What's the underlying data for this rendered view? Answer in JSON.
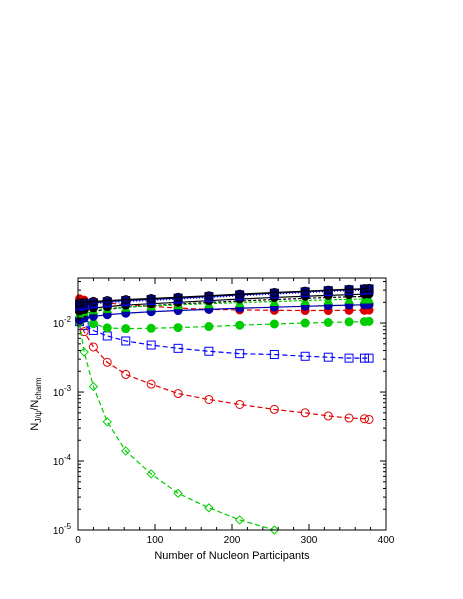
{
  "chart_data": {
    "type": "scatter",
    "title": "",
    "xlabel": "Number of Nucleon Participants",
    "ylabel_main": "N",
    "ylabel_sub1": "J/ψ",
    "ylabel_mid": "/N",
    "ylabel_sub2": "charm",
    "xlim": [
      0,
      400
    ],
    "ylog": true,
    "ylim": [
      1e-05,
      0.045
    ],
    "x_ticks": [
      0,
      100,
      200,
      300,
      400
    ],
    "x_tick_labels": [
      "0",
      "100",
      "200",
      "300",
      "400"
    ],
    "y_ticks": [
      1e-05,
      0.0001,
      0.001,
      0.01
    ],
    "y_tick_labels": [
      {
        "base": "10",
        "exp": "-5"
      },
      {
        "base": "10",
        "exp": "-4"
      },
      {
        "base": "10",
        "exp": "-3"
      },
      {
        "base": "10",
        "exp": "-2"
      }
    ],
    "x": [
      2,
      8,
      20,
      38,
      62,
      95,
      130,
      170,
      210,
      255,
      295,
      325,
      352,
      372,
      378
    ],
    "series": [
      {
        "color": "#0000ff",
        "marker": "open-square",
        "dash": "5,3",
        "values": [
          0.0105,
          0.0092,
          0.0078,
          0.0065,
          0.0055,
          0.0048,
          0.0043,
          0.0039,
          0.0036,
          0.0035,
          0.0033,
          0.0032,
          0.0031,
          0.0031,
          0.0031
        ]
      },
      {
        "color": "#e00000",
        "marker": "open-circle",
        "dash": "5,3",
        "values": [
          0.0105,
          0.0075,
          0.0045,
          0.0027,
          0.0018,
          0.0013,
          0.00095,
          0.00078,
          0.00066,
          0.00056,
          0.0005,
          0.00045,
          0.00042,
          0.00041,
          0.0004
        ]
      },
      {
        "color": "#00cc00",
        "marker": "open-diamond",
        "dash": "5,3",
        "values": [
          0.01,
          0.0038,
          0.0012,
          0.00037,
          0.00014,
          6.5e-05,
          3.4e-05,
          2.1e-05,
          1.4e-05,
          1e-05
        ]
      },
      {
        "color": "#00cc00",
        "marker": "filled-circle",
        "dash": "5,3",
        "values": [
          0.0215,
          0.0145,
          0.0098,
          0.0085,
          0.0083,
          0.0084,
          0.0086,
          0.0089,
          0.0093,
          0.0097,
          0.01,
          0.0102,
          0.0104,
          0.0105,
          0.0106
        ]
      },
      {
        "color": "#e00000",
        "marker": "filled-circle",
        "dash": "5,3",
        "values": [
          0.0225,
          0.0215,
          0.0205,
          0.0195,
          0.0185,
          0.0175,
          0.0165,
          0.0158,
          0.0155,
          0.0153,
          0.0152,
          0.0152,
          0.0153,
          0.0153,
          0.0154
        ]
      },
      {
        "color": "#0000aa",
        "marker": "filled-circle",
        "dash": "none",
        "values": [
          0.011,
          0.0118,
          0.0125,
          0.0132,
          0.0139,
          0.0146,
          0.0152,
          0.0158,
          0.0164,
          0.017,
          0.0175,
          0.0179,
          0.0182,
          0.0184,
          0.0185
        ]
      },
      {
        "color": "#000000",
        "marker": "filled-triangle-down",
        "dash": "3,2",
        "values": [
          0.0125,
          0.0135,
          0.0147,
          0.0158,
          0.0169,
          0.0179,
          0.0189,
          0.0199,
          0.0209,
          0.0219,
          0.0228,
          0.0235,
          0.024,
          0.0243,
          0.0245
        ]
      },
      {
        "color": "#00cc00",
        "marker": "filled-triangle-up",
        "dash": "3,2",
        "values": [
          0.014,
          0.0148,
          0.0156,
          0.0163,
          0.017,
          0.0177,
          0.0184,
          0.0191,
          0.0198,
          0.0205,
          0.0212,
          0.0217,
          0.0221,
          0.0223,
          0.0224
        ]
      },
      {
        "color": "#000000",
        "marker": "filled-circle",
        "dash": "none",
        "values": [
          0.015,
          0.0157,
          0.0165,
          0.0173,
          0.0182,
          0.0191,
          0.02,
          0.0211,
          0.0223,
          0.0235,
          0.0245,
          0.0252,
          0.0258,
          0.0262,
          0.0264
        ]
      },
      {
        "color": "#0000ff",
        "marker": "filled-square",
        "dash": "1,2",
        "values": [
          0.0175,
          0.0182,
          0.0189,
          0.0196,
          0.0204,
          0.0212,
          0.0222,
          0.0234,
          0.0248,
          0.0263,
          0.0276,
          0.0286,
          0.0295,
          0.03,
          0.0303
        ]
      },
      {
        "color": "#000080",
        "marker": "filled-square",
        "dash": "none",
        "values": [
          0.0185,
          0.0191,
          0.0197,
          0.0204,
          0.0212,
          0.022,
          0.023,
          0.0242,
          0.0256,
          0.0271,
          0.0284,
          0.0295,
          0.0304,
          0.031,
          0.0313
        ]
      },
      {
        "color": "#000000",
        "marker": "open-circle",
        "dash": "none",
        "values": [
          0.0195,
          0.02,
          0.0206,
          0.0212,
          0.0219,
          0.0227,
          0.0237,
          0.0249,
          0.0263,
          0.0277,
          0.029,
          0.03,
          0.0309,
          0.0315,
          0.0318
        ]
      }
    ]
  }
}
